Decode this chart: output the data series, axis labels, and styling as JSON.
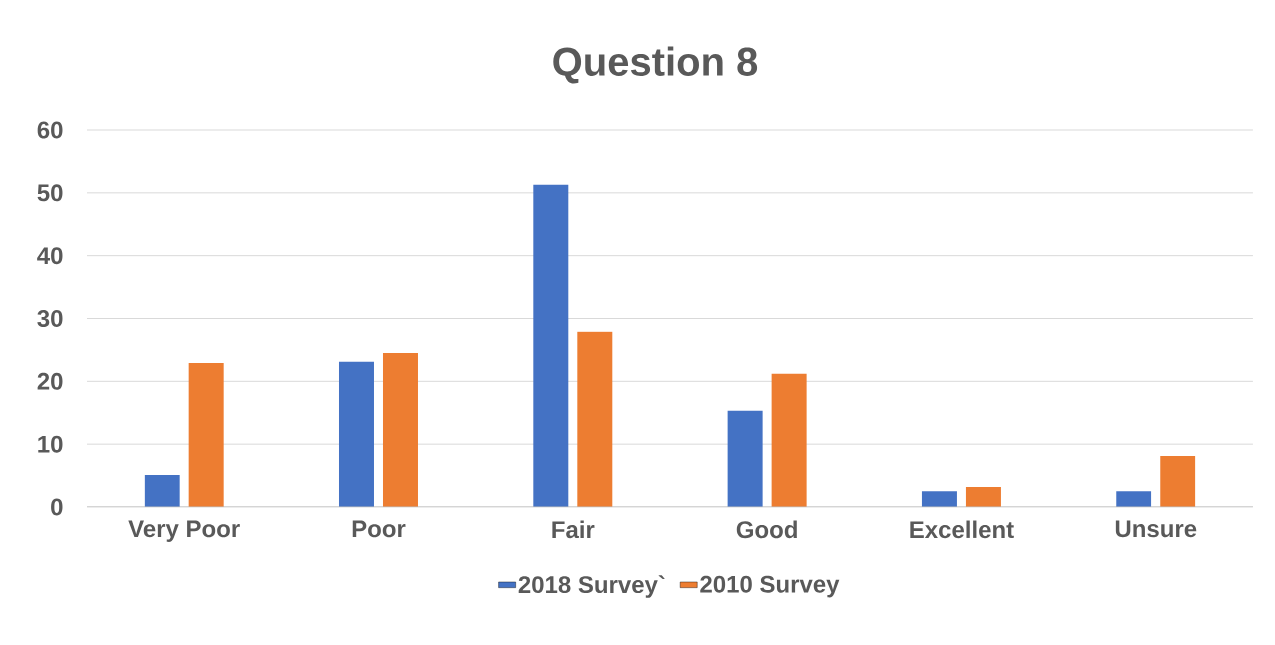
{
  "chart_data": {
    "type": "bar",
    "title": "Question 8",
    "categories": [
      "Very Poor",
      "Poor",
      "Fair",
      "Good",
      "Excellent",
      "Unsure"
    ],
    "series": [
      {
        "name": "2018 Survey`",
        "color": "#4472c4",
        "values": [
          5.1,
          23.1,
          51.3,
          15.3,
          2.5,
          2.5
        ]
      },
      {
        "name": "2010 Survey",
        "color": "#ed7d31",
        "values": [
          22.9,
          24.5,
          27.9,
          21.2,
          3.2,
          8.1
        ]
      }
    ],
    "ylim": [
      0,
      60
    ],
    "yticks": [
      0,
      10,
      20,
      30,
      40,
      50,
      60
    ],
    "grid": "y",
    "legend": "bottom"
  }
}
